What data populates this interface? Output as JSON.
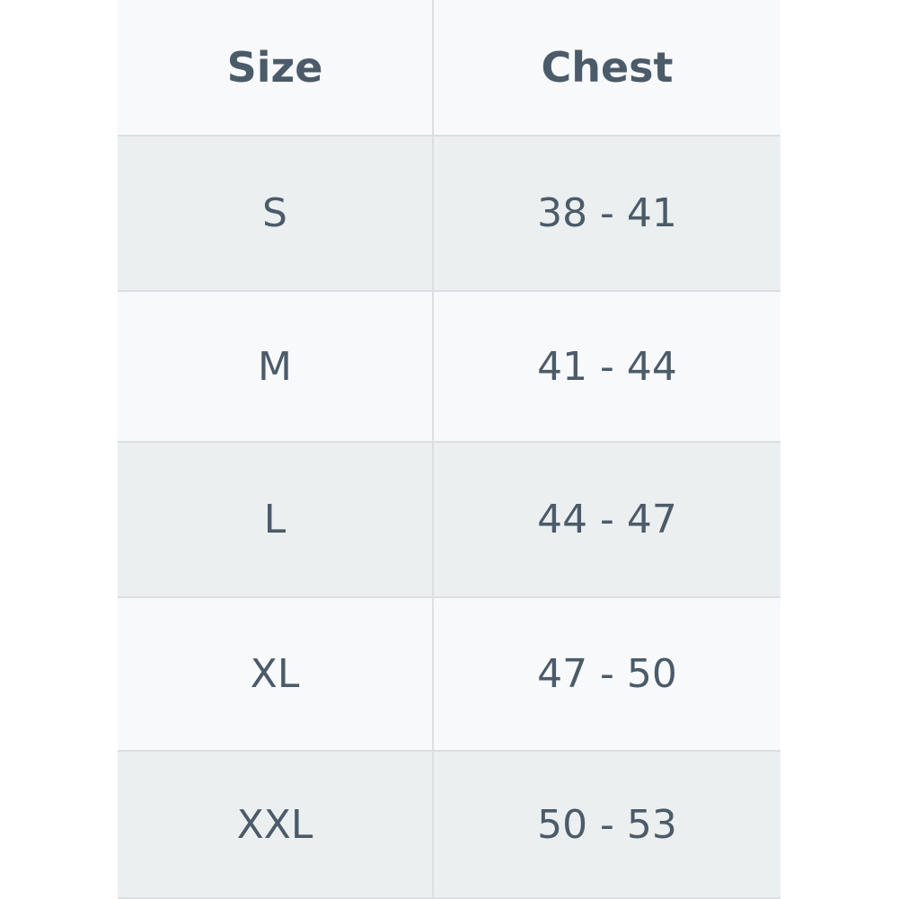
{
  "table": {
    "header": [
      "Size",
      "Chest"
    ],
    "rows": [
      [
        "S",
        "38 - 41"
      ],
      [
        "M",
        "41 - 44"
      ],
      [
        "L",
        "44 - 47"
      ],
      [
        "XL",
        "47 - 50"
      ],
      [
        "XXL",
        "50 - 53"
      ]
    ]
  }
}
